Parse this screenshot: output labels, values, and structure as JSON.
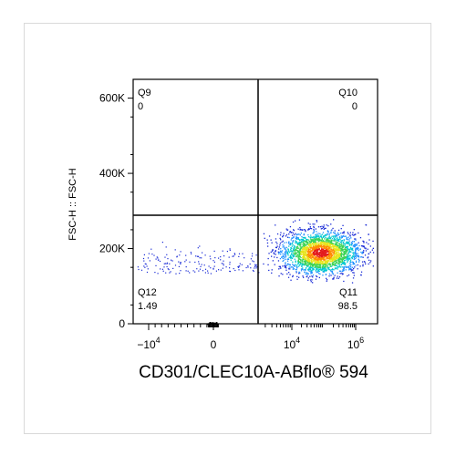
{
  "chart_data": {
    "type": "scatter",
    "subtype": "flow-cytometry-density-dot-plot",
    "xlabel": "CD301/CLEC10A-ABflo® 594",
    "ylabel": "FSC-H :: FSC-H",
    "x_scale": "biexponential",
    "x_ticks": [
      {
        "label": "−10",
        "exp": "4",
        "value": -10000
      },
      {
        "label": "0",
        "exp": "",
        "value": 0
      },
      {
        "label": "10",
        "exp": "4",
        "value": 10000
      },
      {
        "label": "10",
        "exp": "6",
        "value": 1000000
      }
    ],
    "y_ticks": [
      {
        "label": "0",
        "value": 0
      },
      {
        "label": "200K",
        "value": 200000
      },
      {
        "label": "400K",
        "value": 400000
      },
      {
        "label": "600K",
        "value": 600000
      }
    ],
    "ylim": [
      0,
      650000
    ],
    "gates": {
      "x_value": 2000,
      "y_value": 275000
    },
    "quadrants": [
      {
        "name": "Q9",
        "value": "0",
        "position": "top-left"
      },
      {
        "name": "Q10",
        "value": "0",
        "position": "top-right"
      },
      {
        "name": "Q12",
        "value": "1.49",
        "position": "bottom-left"
      },
      {
        "name": "Q11",
        "value": "98.5",
        "position": "bottom-right"
      }
    ],
    "populations": [
      {
        "description": "main positive population",
        "x_center_decade": 4.8,
        "y_center": 190000,
        "percent": 98.5
      },
      {
        "description": "scattered negative events",
        "x_range": [
          -10000,
          1000
        ],
        "y_center": 165000,
        "percent": 1.49
      }
    ],
    "density_colors": [
      "#1a2bd6",
      "#1e90ff",
      "#00c8d0",
      "#39d353",
      "#e8e41c",
      "#ff8c00",
      "#e31a1c"
    ],
    "grid": false
  }
}
